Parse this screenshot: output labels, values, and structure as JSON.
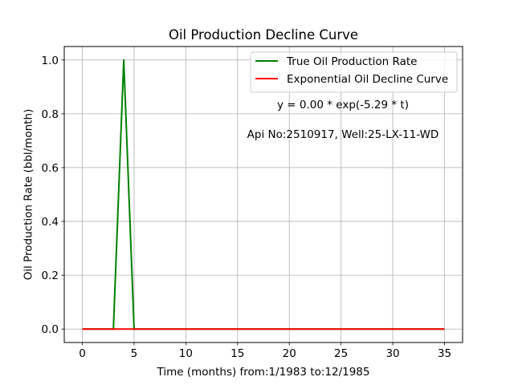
{
  "chart_data": {
    "type": "line",
    "title": "Oil Production Decline Curve",
    "xlabel": "Time (months) from:1/1983 to:12/1985",
    "ylabel": "Oil Production Rate (bbl/month)",
    "xlim": [
      -1.75,
      36.75
    ],
    "ylim": [
      -0.05,
      1.05
    ],
    "xticks": [
      0,
      5,
      10,
      15,
      20,
      25,
      30,
      35
    ],
    "xtick_labels": [
      "0",
      "5",
      "10",
      "15",
      "20",
      "25",
      "30",
      "35"
    ],
    "yticks": [
      0.0,
      0.2,
      0.4,
      0.6,
      0.8,
      1.0
    ],
    "ytick_labels": [
      "0.0",
      "0.2",
      "0.4",
      "0.6",
      "0.8",
      "1.0"
    ],
    "grid": true,
    "legend_position": "upper right",
    "series": [
      {
        "name": "True Oil Production Rate",
        "color": "#008000",
        "x": [
          0,
          1,
          2,
          3,
          4,
          5,
          6,
          7,
          8,
          9,
          10,
          11,
          12,
          13,
          14,
          15,
          16,
          17,
          18,
          19,
          20,
          21,
          22,
          23,
          24,
          25,
          26,
          27,
          28,
          29,
          30,
          31,
          32,
          33,
          34,
          35
        ],
        "y": [
          0,
          0,
          0,
          0,
          1,
          0,
          0,
          0,
          0,
          0,
          0,
          0,
          0,
          0,
          0,
          0,
          0,
          0,
          0,
          0,
          0,
          0,
          0,
          0,
          0,
          0,
          0,
          0,
          0,
          0,
          0,
          0,
          0,
          0,
          0,
          0
        ]
      },
      {
        "name": "Exponential Oil Decline Curve",
        "color": "#ff0000",
        "x": [
          0,
          1,
          2,
          3,
          4,
          5,
          6,
          7,
          8,
          9,
          10,
          11,
          12,
          13,
          14,
          15,
          16,
          17,
          18,
          19,
          20,
          21,
          22,
          23,
          24,
          25,
          26,
          27,
          28,
          29,
          30,
          31,
          32,
          33,
          34,
          35
        ],
        "y": [
          0,
          0,
          0,
          0,
          0,
          0,
          0,
          0,
          0,
          0,
          0,
          0,
          0,
          0,
          0,
          0,
          0,
          0,
          0,
          0,
          0,
          0,
          0,
          0,
          0,
          0,
          0,
          0,
          0,
          0,
          0,
          0,
          0,
          0,
          0,
          0
        ]
      }
    ],
    "annotations": [
      "y = 0.00 * exp(-5.29 * t)",
      "Api No:2510917, Well:25-LX-11-WD"
    ]
  }
}
